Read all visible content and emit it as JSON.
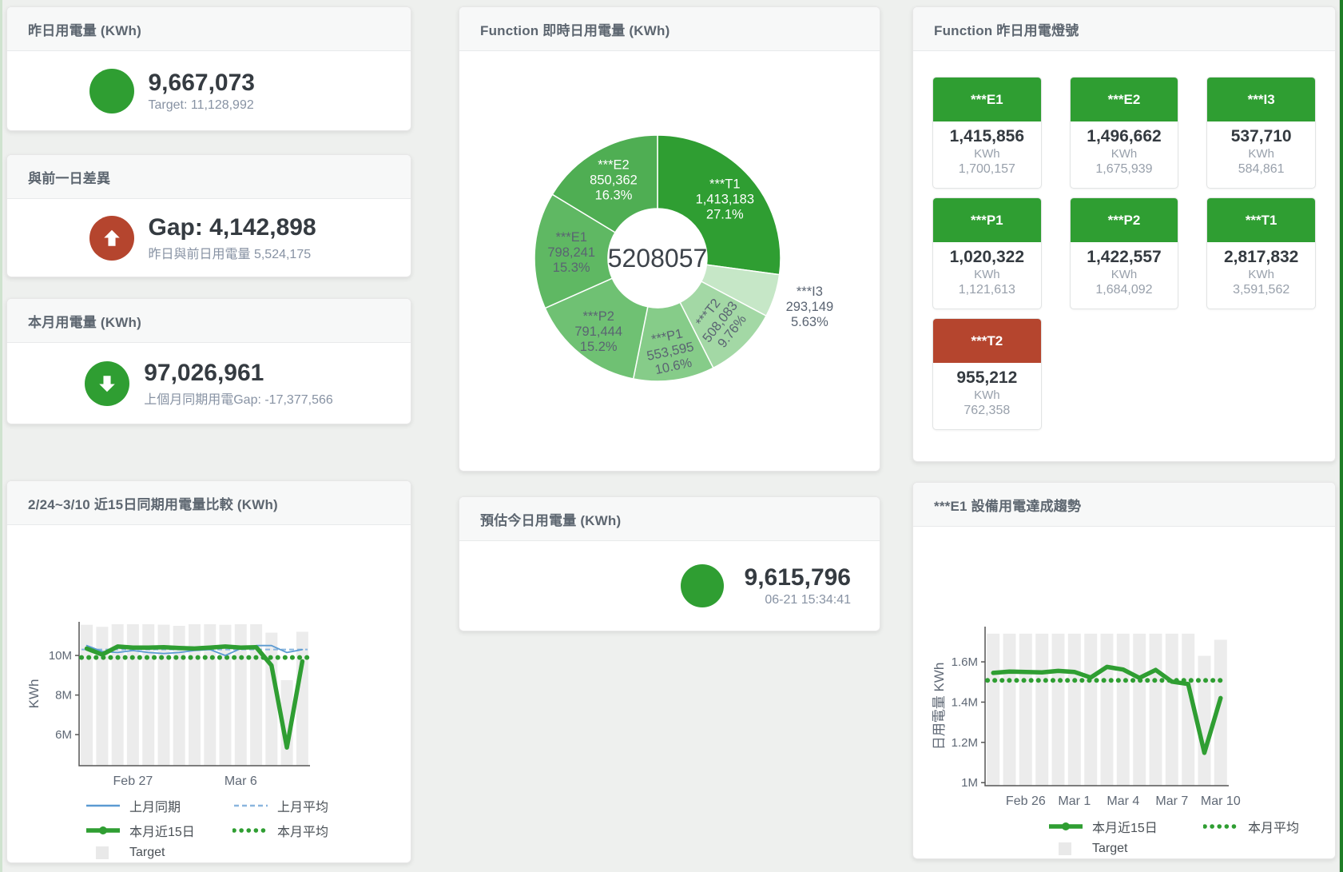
{
  "colors": {
    "green": "#2f9e32",
    "red": "#b5452e",
    "blue": "#5b9ad2",
    "blue_light": "#8ab6de",
    "bar": "#ececec",
    "axis": "#555555",
    "tick_text": "#5f6875"
  },
  "cards": {
    "yesterday": {
      "title": "昨日用電量 (KWh)",
      "value": "9,667,073",
      "subtitle": "Target: 11,128,992"
    },
    "gap": {
      "title": "與前一日差異",
      "value": "Gap: 4,142,898",
      "subtitle": "昨日與前日用電量 5,524,175"
    },
    "month": {
      "title": "本月用電量 (KWh)",
      "value": "97,026,961",
      "subtitle": "上個月同期用電Gap: -17,377,566"
    },
    "estimate": {
      "title": "預估今日用電量 (KWh)",
      "value": "9,615,796",
      "subtitle": "06-21 15:34:41"
    },
    "donut": {
      "title": "Function 即時日用電量 (KWh)"
    },
    "lights": {
      "title": "Function 昨日用電燈號"
    },
    "compare": {
      "title": "2/24~3/10 近15日同期用電量比較 (KWh)"
    },
    "trend": {
      "title": "***E1 設備用電達成趨勢"
    }
  },
  "lights_tiles": [
    {
      "name": "***E1",
      "value": "1,415,856",
      "unit": "KWh",
      "target": "1,700,157",
      "status": "green"
    },
    {
      "name": "***E2",
      "value": "1,496,662",
      "unit": "KWh",
      "target": "1,675,939",
      "status": "green"
    },
    {
      "name": "***I3",
      "value": "537,710",
      "unit": "KWh",
      "target": "584,861",
      "status": "green"
    },
    {
      "name": "***P1",
      "value": "1,020,322",
      "unit": "KWh",
      "target": "1,121,613",
      "status": "green"
    },
    {
      "name": "***P2",
      "value": "1,422,557",
      "unit": "KWh",
      "target": "1,684,092",
      "status": "green"
    },
    {
      "name": "***T1",
      "value": "2,817,832",
      "unit": "KWh",
      "target": "3,591,562",
      "status": "green"
    },
    {
      "name": "***T2",
      "value": "955,212",
      "unit": "KWh",
      "target": "762,358",
      "status": "red"
    }
  ],
  "chart_data": [
    {
      "id": "donut",
      "type": "pie",
      "title": "Function 即時日用電量 (KWh)",
      "center_total": "5208057",
      "slices": [
        {
          "label": "***T1",
          "value": 1413183,
          "value_label": "1,413,183",
          "pct": "27.1%",
          "color": "#2f9e32",
          "text": "#ffffff",
          "label_r": 112,
          "rotate": 0
        },
        {
          "label": "***I3",
          "value": 293149,
          "value_label": "293,149",
          "pct": "5.63%",
          "color": "#c6e7c7",
          "text": "#5a6472",
          "label_r": 200,
          "rotate": 0
        },
        {
          "label": "***T2",
          "value": 508083,
          "value_label": "508,083",
          "pct": "9.76%",
          "color": "#a3d8a5",
          "text": "#5a6472",
          "label_r": 112,
          "rotate": -52
        },
        {
          "label": "***P1",
          "value": 553595,
          "value_label": "553,595",
          "pct": "10.6%",
          "color": "#86cc89",
          "text": "#5a6472",
          "label_r": 118,
          "rotate": -12
        },
        {
          "label": "***P2",
          "value": 791444,
          "value_label": "791,444",
          "pct": "15.2%",
          "color": "#6fc173",
          "text": "#5a6472",
          "label_r": 118,
          "rotate": 0
        },
        {
          "label": "***E1",
          "value": 798241,
          "value_label": "798,241",
          "pct": "15.3%",
          "color": "#5fb863",
          "text": "#5a6472",
          "label_r": 108,
          "rotate": 0
        },
        {
          "label": "***E2",
          "value": 850362,
          "value_label": "850,362",
          "pct": "16.3%",
          "color": "#4fae53",
          "text": "#ffffff",
          "label_r": 112,
          "rotate": 0
        }
      ]
    },
    {
      "id": "compare",
      "type": "line",
      "title": "2/24~3/10 近15日同期用電量比較 (KWh)",
      "ylabel": "KWh",
      "ylim": [
        4430000,
        11700000
      ],
      "yticks": [
        {
          "v": 6000000,
          "label": "6M"
        },
        {
          "v": 8000000,
          "label": "8M"
        },
        {
          "v": 10000000,
          "label": "10M"
        }
      ],
      "xticks": [
        {
          "i": 3,
          "label": "Feb 27"
        },
        {
          "i": 10,
          "label": "Mar 6"
        }
      ],
      "target_bars": [
        11550000,
        11450000,
        11580000,
        11580000,
        11580000,
        11560000,
        11500000,
        11580000,
        11580000,
        11550000,
        11580000,
        11580000,
        11150000,
        8750000,
        11200000
      ],
      "ref_lines": [
        {
          "name": "上月平均",
          "value": 10300000,
          "color": "#8ab6de",
          "style": "dash",
          "width": 2
        },
        {
          "name": "本月平均",
          "value": 9900000,
          "color": "#2f9e32",
          "style": "dots",
          "width": 6
        }
      ],
      "series": [
        {
          "name": "上月同期",
          "color": "#5b9ad2",
          "width": 1.8,
          "values": [
            10500000,
            10200000,
            10150000,
            10250000,
            10150000,
            10100000,
            10150000,
            10250000,
            10300000,
            10000000,
            10350000,
            10500000,
            10500000,
            10150000,
            10300000
          ]
        },
        {
          "name": "本月近15日",
          "color": "#2f9e32",
          "width": 5.5,
          "values": [
            10350000,
            10050000,
            10450000,
            10400000,
            10400000,
            10420000,
            10380000,
            10350000,
            10400000,
            10450000,
            10400000,
            10420000,
            9500000,
            5350000,
            9700000
          ]
        }
      ],
      "legend": [
        {
          "label": "上月同期",
          "swatch": "line",
          "color": "#5b9ad2"
        },
        {
          "label": "上月平均",
          "swatch": "dash",
          "color": "#8ab6de"
        },
        {
          "label": "本月近15日",
          "swatch": "thickline",
          "color": "#2f9e32"
        },
        {
          "label": "本月平均",
          "swatch": "dots",
          "color": "#2f9e32"
        },
        {
          "label": "Target",
          "swatch": "square",
          "color": "#e9e9e9"
        }
      ],
      "bar_color": "#ececec"
    },
    {
      "id": "trend",
      "type": "line",
      "title": "***E1 設備用電達成趨勢",
      "ylabel": "日用電量 KWh",
      "ylim": [
        985000,
        1775000
      ],
      "yticks": [
        {
          "v": 1000000,
          "label": "1M"
        },
        {
          "v": 1200000,
          "label": "1.2M"
        },
        {
          "v": 1400000,
          "label": "1.4M"
        },
        {
          "v": 1600000,
          "label": "1.6M"
        }
      ],
      "xticks": [
        {
          "i": 2,
          "label": "Feb 26"
        },
        {
          "i": 5,
          "label": "Mar 1"
        },
        {
          "i": 8,
          "label": "Mar 4"
        },
        {
          "i": 11,
          "label": "Mar 7"
        },
        {
          "i": 14,
          "label": "Mar 10"
        }
      ],
      "target_bars": [
        1740000,
        1740000,
        1740000,
        1740000,
        1740000,
        1740000,
        1740000,
        1740000,
        1740000,
        1740000,
        1740000,
        1740000,
        1740000,
        1630000,
        1710000
      ],
      "ref_lines": [
        {
          "name": "本月平均",
          "value": 1508000,
          "color": "#2f9e32",
          "style": "dots",
          "width": 6
        }
      ],
      "series": [
        {
          "name": "本月近15日",
          "color": "#2f9e32",
          "width": 5.5,
          "values": [
            1545000,
            1552000,
            1550000,
            1548000,
            1555000,
            1550000,
            1522000,
            1575000,
            1562000,
            1520000,
            1560000,
            1502000,
            1490000,
            1148000,
            1420000
          ]
        }
      ],
      "legend": [
        {
          "label": "本月近15日",
          "swatch": "thickline",
          "color": "#2f9e32"
        },
        {
          "label": "本月平均",
          "swatch": "dots",
          "color": "#2f9e32"
        },
        {
          "label": "Target",
          "swatch": "square",
          "color": "#e9e9e9"
        }
      ],
      "bar_color": "#ececec"
    }
  ]
}
